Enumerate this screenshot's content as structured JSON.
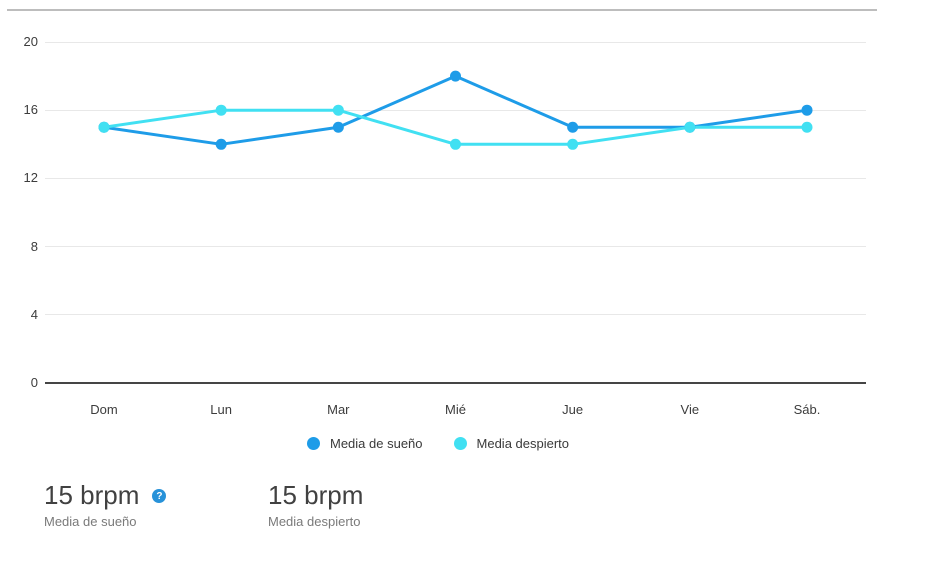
{
  "chart_data": {
    "type": "line",
    "categories": [
      "Dom",
      "Lun",
      "Mar",
      "Mié",
      "Jue",
      "Vie",
      "Sáb."
    ],
    "series": [
      {
        "name": "Media de sueño",
        "color": "#1e9ce8",
        "values": [
          15,
          14,
          15,
          18,
          15,
          15,
          16
        ]
      },
      {
        "name": "Media despierto",
        "color": "#41e0f2",
        "values": [
          15,
          16,
          16,
          14,
          14,
          15,
          15
        ]
      }
    ],
    "title": "",
    "xlabel": "",
    "ylabel": "",
    "ylim": [
      0,
      20
    ],
    "yticks": [
      20,
      16,
      12,
      8,
      4,
      0
    ],
    "grid": true,
    "legend_position": "bottom-center"
  },
  "summary_cards": [
    {
      "value": "15 brpm",
      "label": "Media de sueño",
      "has_info_icon": true
    },
    {
      "value": "15 brpm",
      "label": "Media despierto",
      "has_info_icon": false
    }
  ],
  "icons": {
    "info_icon": "?"
  },
  "colors": {
    "sleep_series": "#1e9ce8",
    "awake_series": "#41e0f2",
    "grid_line": "#e8e8e8",
    "axis_line": "#454545",
    "top_divider": "#bdbdbd",
    "info_icon_bg": "#2792d9"
  }
}
